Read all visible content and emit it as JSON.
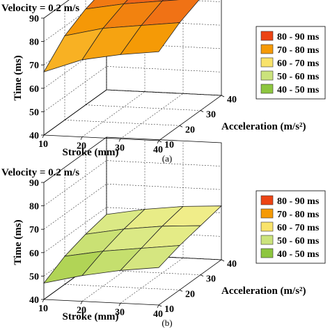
{
  "chart_data": [
    {
      "panel": "a",
      "type": "surface",
      "title": "Velocity = 0.2 m/s",
      "caption": "(a)",
      "xlabel": "Stroke (mm)",
      "ylabel": "Acceleration (m/s²)",
      "zlabel": "Time (ms)",
      "x": [
        10,
        20,
        30,
        40
      ],
      "y": [
        10,
        20,
        30,
        40
      ],
      "x_ticks": [
        "10",
        "20",
        "30",
        "40"
      ],
      "y_ticks": [
        "10",
        "20",
        "30",
        "40"
      ],
      "z_ticks": [
        "40",
        "50",
        "60",
        "70",
        "80",
        "90"
      ],
      "zlim": [
        40,
        90
      ],
      "z": [
        [
          67,
          76,
          81,
          84
        ],
        [
          73,
          80,
          84,
          87
        ],
        [
          76,
          82,
          86,
          89
        ],
        [
          78,
          84,
          88,
          90
        ]
      ],
      "legend": [
        "80 - 90 ms",
        "70 - 80 ms",
        "60 - 70 ms",
        "50 - 60 ms",
        "40 - 50 ms"
      ],
      "legend_colors": [
        "#ec4414",
        "#f59a06",
        "#f9e36a",
        "#cbe37c",
        "#8dc63f"
      ]
    },
    {
      "panel": "b",
      "type": "surface",
      "title": "Velocity = 0.2 m/s",
      "caption": "(b)",
      "xlabel": "Stroke (mm)",
      "ylabel": "Acceleration (m/s²)",
      "zlabel": "Time (ms)",
      "x": [
        10,
        20,
        30,
        40
      ],
      "y": [
        10,
        20,
        30,
        40
      ],
      "x_ticks": [
        "10",
        "20",
        "30",
        "40"
      ],
      "y_ticks": [
        "10",
        "20",
        "30",
        "40"
      ],
      "z_ticks": [
        "40",
        "50",
        "60",
        "70",
        "80",
        "90"
      ],
      "zlim": [
        40,
        90
      ],
      "z": [
        [
          47,
          52,
          55,
          57
        ],
        [
          51,
          55,
          58,
          60
        ],
        [
          54,
          57,
          60,
          62
        ],
        [
          56,
          59,
          61,
          63
        ]
      ],
      "legend": [
        "80 - 90 ms",
        "70 - 80 ms",
        "60 - 70 ms",
        "50 - 60 ms",
        "40 - 50 ms"
      ],
      "legend_colors": [
        "#ec4414",
        "#f59a06",
        "#f9e36a",
        "#cbe37c",
        "#8dc63f"
      ]
    }
  ]
}
